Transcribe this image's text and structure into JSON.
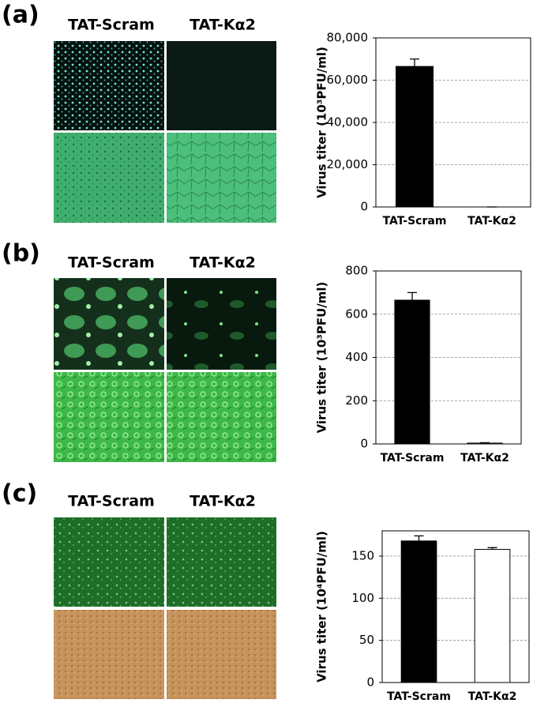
{
  "panels": [
    {
      "label": "(a)",
      "columns": [
        "TAT-Scram",
        "TAT-Kα2"
      ]
    },
    {
      "label": "(b)",
      "columns": [
        "TAT-Scram",
        "TAT-Kα2"
      ]
    },
    {
      "label": "(c)",
      "columns": [
        "TAT-Scram",
        "TAT-Kα2"
      ]
    }
  ],
  "chart_data": [
    {
      "type": "bar",
      "y_label": "Virus titer (10³PFU/ml)",
      "categories": [
        "TAT-Scram",
        "TAT-Kα2"
      ],
      "values": [
        66500,
        0
      ],
      "errors": [
        3500,
        0
      ],
      "colors": [
        "#000000",
        "#ffffff"
      ],
      "ylim": [
        0,
        80000
      ],
      "yticks": [
        0,
        {
          "value": 20000,
          "label": "20,000"
        },
        {
          "value": 40000,
          "label": "40,000"
        },
        {
          "value": 60000,
          "label": "60,000"
        },
        {
          "value": 80000,
          "label": "80,000"
        }
      ],
      "grid": true
    },
    {
      "type": "bar",
      "y_label": "Virus titer (10³PFU/ml)",
      "categories": [
        "TAT-Scram",
        "TAT-Kα2"
      ],
      "values": [
        665,
        4
      ],
      "errors": [
        35,
        2
      ],
      "colors": [
        "#000000",
        "#ffffff"
      ],
      "ylim": [
        0,
        800
      ],
      "yticks": [
        0,
        200,
        400,
        600,
        800
      ],
      "grid": true
    },
    {
      "type": "bar",
      "y_label": "Virus titer (10⁴PFU/ml)",
      "categories": [
        "TAT-Scram",
        "TAT-Kα2"
      ],
      "values": [
        168,
        158
      ],
      "errors": [
        6,
        2
      ],
      "colors": [
        "#000000",
        "#ffffff"
      ],
      "ylim": [
        0,
        180
      ],
      "yticks": [
        0,
        50,
        100,
        150
      ],
      "grid": true
    }
  ]
}
